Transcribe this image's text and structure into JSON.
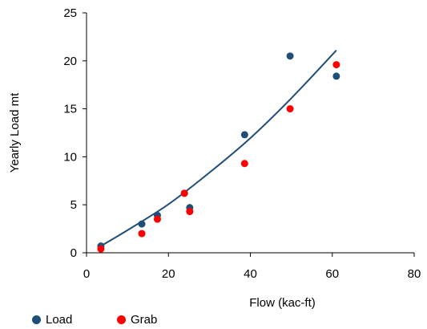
{
  "chart_data": {
    "type": "scatter",
    "title": "",
    "xlabel": "Flow (kac-ft)",
    "ylabel": "Yearly Load mt",
    "xlim": [
      0,
      80
    ],
    "ylim": [
      0,
      25
    ],
    "xticks": [
      "0",
      "20",
      "40",
      "60",
      "80"
    ],
    "yticks": [
      "0",
      "5",
      "10",
      "15",
      "20",
      "25"
    ],
    "grid": false,
    "legend_position": "bottom-left",
    "series": [
      {
        "name": "Load",
        "color": "#1f4e79",
        "points": [
          [
            3.5,
            0.7
          ],
          [
            13.5,
            3.0
          ],
          [
            17.3,
            3.9
          ],
          [
            23.9,
            6.2
          ],
          [
            25.2,
            4.7
          ],
          [
            38.6,
            12.3
          ],
          [
            49.7,
            20.5
          ],
          [
            61.0,
            18.4
          ]
        ]
      },
      {
        "name": "Grab",
        "color": "#ff0000",
        "points": [
          [
            3.5,
            0.4
          ],
          [
            13.5,
            2.0
          ],
          [
            17.3,
            3.5
          ],
          [
            23.9,
            6.2
          ],
          [
            25.2,
            4.3
          ],
          [
            38.6,
            9.3
          ],
          [
            49.7,
            15.0
          ],
          [
            61.0,
            19.6
          ]
        ]
      }
    ],
    "trendline": {
      "type": "power",
      "color": "#1f4e79",
      "points": [
        [
          3.5,
          0.7
        ],
        [
          10,
          2.35
        ],
        [
          20,
          5.05
        ],
        [
          30,
          8.35
        ],
        [
          40,
          11.95
        ],
        [
          50,
          16.1
        ],
        [
          61,
          21.1
        ]
      ]
    }
  }
}
